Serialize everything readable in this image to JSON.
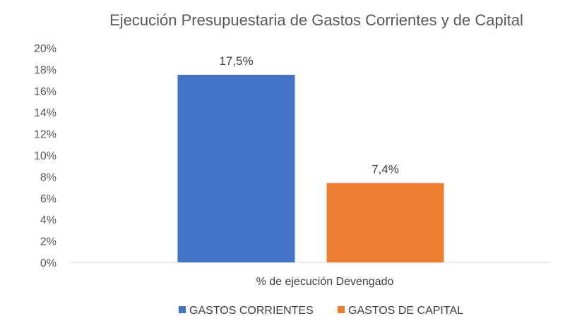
{
  "chart_data": {
    "type": "bar",
    "title": "Ejecución Presupuestaria de Gastos Corrientes y de Capital",
    "categories": [
      "% de ejecución Devengado"
    ],
    "series": [
      {
        "name": "GASTOS CORRIENTES",
        "values": [
          17.5
        ],
        "label": "17,5%",
        "color": "#4472C4"
      },
      {
        "name": "GASTOS DE CAPITAL",
        "values": [
          7.4
        ],
        "label": "7,4%",
        "color": "#ED7D31"
      }
    ],
    "ylim": [
      0,
      20
    ],
    "yticks": [
      "0%",
      "2%",
      "4%",
      "6%",
      "8%",
      "10%",
      "12%",
      "14%",
      "16%",
      "18%",
      "20%"
    ],
    "xlabel": "",
    "ylabel": "",
    "grid": false,
    "legend_position": "bottom"
  }
}
